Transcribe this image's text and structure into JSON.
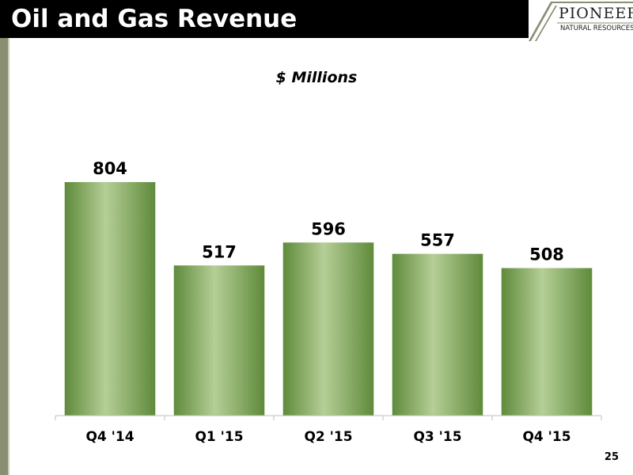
{
  "slide": {
    "title": "Oil and Gas Revenue",
    "page_number": "25"
  },
  "logo": {
    "name": "PIONEER",
    "subtitle": "NATURAL RESOURCES"
  },
  "colors": {
    "title_bar": "#000000",
    "bar_light": "#b5cf96",
    "bar_dark": "#5f8a3b",
    "stripe": "#8a8e73"
  },
  "chart_data": {
    "type": "bar",
    "subtitle": "$ Millions",
    "categories": [
      "Q4 '14",
      "Q1 '15",
      "Q2 '15",
      "Q3 '15",
      "Q4 '15"
    ],
    "values": [
      804,
      517,
      596,
      557,
      508
    ],
    "data_labels": [
      "804",
      "517",
      "596",
      "557",
      "508"
    ],
    "ylim": [
      0,
      804
    ],
    "grid": false,
    "legend": "none"
  }
}
